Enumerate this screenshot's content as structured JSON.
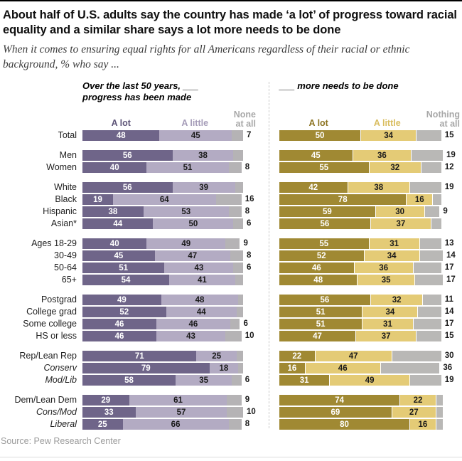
{
  "title": "About half of U.S. adults say the country has made ‘a lot’ of progress toward racial equality and a similar share says a lot more needs to be done",
  "subtitle": "When it comes to ensuring equal rights for all Americans regardless of their racial or ethnic background, % who say ...",
  "source": "Source: Pew Research Center",
  "colors": {
    "purple_dark": "#6f6589",
    "purple_light": "#b3abc3",
    "gold_dark": "#a08933",
    "gold_light": "#e4cb76",
    "gray_segment": "#b5b3b5",
    "legend_gray_text": "#a8a8a8"
  },
  "panels": {
    "left": {
      "header_line1": "Over the last 50 years, ___",
      "header_line2": "progress has been made",
      "legend": {
        "a_lot": "A lot",
        "a_little": "A little",
        "rest_line1": "None",
        "rest_line2": "at all"
      }
    },
    "right": {
      "header_line1": "___ more needs to be done",
      "legend": {
        "a_lot": "A lot",
        "a_little": "A little",
        "rest_line1": "Nothing",
        "rest_line2": "at all"
      }
    }
  },
  "chart_data": {
    "type": "bar",
    "variant": "horizontal-stacked-pair",
    "unit": "%",
    "stack_order": [
      "A lot",
      "A little",
      "None/Nothing at all"
    ],
    "left_panel_title": "Over the last 50 years, ___ progress has been made",
    "right_panel_title": "___ more needs to be done",
    "rows": [
      {
        "label": "Total",
        "italic": false,
        "new_group": false,
        "left": {
          "a_lot": 48,
          "a_little": 45,
          "rest": 7,
          "rest_shown": true
        },
        "right": {
          "a_lot": 50,
          "a_little": 34,
          "rest": 15,
          "rest_shown": true
        }
      },
      {
        "label": "Men",
        "italic": false,
        "new_group": true,
        "left": {
          "a_lot": 56,
          "a_little": 38,
          "rest": 6,
          "rest_shown": false
        },
        "right": {
          "a_lot": 45,
          "a_little": 36,
          "rest": 19,
          "rest_shown": true
        }
      },
      {
        "label": "Women",
        "italic": false,
        "new_group": false,
        "left": {
          "a_lot": 40,
          "a_little": 51,
          "rest": 8,
          "rest_shown": true
        },
        "right": {
          "a_lot": 55,
          "a_little": 32,
          "rest": 12,
          "rest_shown": true
        }
      },
      {
        "label": "White",
        "italic": false,
        "new_group": true,
        "left": {
          "a_lot": 56,
          "a_little": 39,
          "rest": 5,
          "rest_shown": false
        },
        "right": {
          "a_lot": 42,
          "a_little": 38,
          "rest": 19,
          "rest_shown": true
        }
      },
      {
        "label": "Black",
        "italic": false,
        "new_group": false,
        "left": {
          "a_lot": 19,
          "a_little": 64,
          "rest": 16,
          "rest_shown": true
        },
        "right": {
          "a_lot": 78,
          "a_little": 16,
          "rest": 5,
          "rest_shown": false
        }
      },
      {
        "label": "Hispanic",
        "italic": false,
        "new_group": false,
        "left": {
          "a_lot": 38,
          "a_little": 53,
          "rest": 8,
          "rest_shown": true
        },
        "right": {
          "a_lot": 59,
          "a_little": 30,
          "rest": 9,
          "rest_shown": true
        }
      },
      {
        "label": "Asian*",
        "italic": false,
        "new_group": false,
        "left": {
          "a_lot": 44,
          "a_little": 50,
          "rest": 6,
          "rest_shown": true
        },
        "right": {
          "a_lot": 56,
          "a_little": 37,
          "rest": 6,
          "rest_shown": false
        }
      },
      {
        "label": "Ages 18-29",
        "italic": false,
        "new_group": true,
        "left": {
          "a_lot": 40,
          "a_little": 49,
          "rest": 9,
          "rest_shown": true
        },
        "right": {
          "a_lot": 55,
          "a_little": 31,
          "rest": 13,
          "rest_shown": true
        }
      },
      {
        "label": "30-49",
        "italic": false,
        "new_group": false,
        "left": {
          "a_lot": 45,
          "a_little": 47,
          "rest": 8,
          "rest_shown": true
        },
        "right": {
          "a_lot": 52,
          "a_little": 34,
          "rest": 14,
          "rest_shown": true
        }
      },
      {
        "label": "50-64",
        "italic": false,
        "new_group": false,
        "left": {
          "a_lot": 51,
          "a_little": 43,
          "rest": 6,
          "rest_shown": true
        },
        "right": {
          "a_lot": 46,
          "a_little": 36,
          "rest": 17,
          "rest_shown": true
        }
      },
      {
        "label": "65+",
        "italic": false,
        "new_group": false,
        "left": {
          "a_lot": 54,
          "a_little": 41,
          "rest": 5,
          "rest_shown": false
        },
        "right": {
          "a_lot": 48,
          "a_little": 35,
          "rest": 17,
          "rest_shown": true
        }
      },
      {
        "label": "Postgrad",
        "italic": false,
        "new_group": true,
        "left": {
          "a_lot": 49,
          "a_little": 48,
          "rest": 3,
          "rest_shown": false
        },
        "right": {
          "a_lot": 56,
          "a_little": 32,
          "rest": 11,
          "rest_shown": true
        }
      },
      {
        "label": "College grad",
        "italic": false,
        "new_group": false,
        "left": {
          "a_lot": 52,
          "a_little": 44,
          "rest": 4,
          "rest_shown": false
        },
        "right": {
          "a_lot": 51,
          "a_little": 34,
          "rest": 14,
          "rest_shown": true
        }
      },
      {
        "label": "Some college",
        "italic": false,
        "new_group": false,
        "left": {
          "a_lot": 46,
          "a_little": 46,
          "rest": 6,
          "rest_shown": true
        },
        "right": {
          "a_lot": 51,
          "a_little": 31,
          "rest": 17,
          "rest_shown": true
        }
      },
      {
        "label": "HS or less",
        "italic": false,
        "new_group": false,
        "left": {
          "a_lot": 46,
          "a_little": 43,
          "rest": 10,
          "rest_shown": true
        },
        "right": {
          "a_lot": 47,
          "a_little": 37,
          "rest": 15,
          "rest_shown": true
        }
      },
      {
        "label": "Rep/Lean Rep",
        "italic": false,
        "new_group": true,
        "left": {
          "a_lot": 71,
          "a_little": 25,
          "rest": 4,
          "rest_shown": false
        },
        "right": {
          "a_lot": 22,
          "a_little": 47,
          "rest": 30,
          "rest_shown": true
        }
      },
      {
        "label": "Conserv",
        "italic": true,
        "new_group": false,
        "left": {
          "a_lot": 79,
          "a_little": 18,
          "rest": 3,
          "rest_shown": false
        },
        "right": {
          "a_lot": 16,
          "a_little": 46,
          "rest": 36,
          "rest_shown": true
        }
      },
      {
        "label": "Mod/Lib",
        "italic": true,
        "new_group": false,
        "left": {
          "a_lot": 58,
          "a_little": 35,
          "rest": 6,
          "rest_shown": true
        },
        "right": {
          "a_lot": 31,
          "a_little": 49,
          "rest": 19,
          "rest_shown": true
        }
      },
      {
        "label": "Dem/Lean Dem",
        "italic": false,
        "new_group": true,
        "left": {
          "a_lot": 29,
          "a_little": 61,
          "rest": 9,
          "rest_shown": true
        },
        "right": {
          "a_lot": 74,
          "a_little": 22,
          "rest": 4,
          "rest_shown": false
        }
      },
      {
        "label": "Cons/Mod",
        "italic": true,
        "new_group": false,
        "left": {
          "a_lot": 33,
          "a_little": 57,
          "rest": 10,
          "rest_shown": true
        },
        "right": {
          "a_lot": 69,
          "a_little": 27,
          "rest": 4,
          "rest_shown": false
        }
      },
      {
        "label": "Liberal",
        "italic": true,
        "new_group": false,
        "left": {
          "a_lot": 25,
          "a_little": 66,
          "rest": 8,
          "rest_shown": true
        },
        "right": {
          "a_lot": 80,
          "a_little": 16,
          "rest": 4,
          "rest_shown": false
        }
      }
    ]
  }
}
